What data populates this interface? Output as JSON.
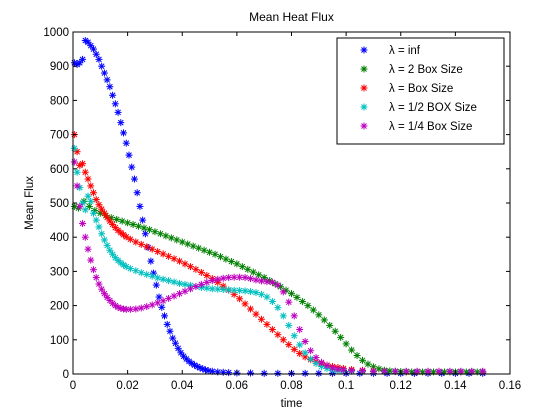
{
  "chart_data": {
    "type": "scatter",
    "title": "Mean Heat Flux",
    "xlabel": "time",
    "ylabel": "Mean Flux",
    "xlim": [
      0,
      0.16
    ],
    "ylim": [
      0,
      1000
    ],
    "xticks": [
      0,
      0.02,
      0.04,
      0.06,
      0.08,
      0.1,
      0.12,
      0.14,
      0.16
    ],
    "xtick_labels": [
      "0",
      "0.02",
      "0.04",
      "0.06",
      "0.08",
      "0.1",
      "0.12",
      "0.14",
      "0.16"
    ],
    "yticks": [
      0,
      100,
      200,
      300,
      400,
      500,
      600,
      700,
      800,
      900,
      1000
    ],
    "ytick_labels": [
      "0",
      "100",
      "200",
      "300",
      "400",
      "500",
      "600",
      "700",
      "800",
      "900",
      "1000"
    ],
    "grid": false,
    "legend_position": "top-right",
    "marker": "*",
    "series": [
      {
        "name": "λ = inf",
        "color": "#0000ff",
        "x": [
          0.0005,
          0.0015,
          0.0025,
          0.0035,
          0.0045,
          0.0055,
          0.0065,
          0.0075,
          0.0085,
          0.0095,
          0.0105,
          0.0115,
          0.0125,
          0.0135,
          0.0145,
          0.0155,
          0.0165,
          0.0175,
          0.0185,
          0.0195,
          0.0205,
          0.0215,
          0.0225,
          0.0235,
          0.0245,
          0.0255,
          0.0265,
          0.0275,
          0.0285,
          0.0295,
          0.0305,
          0.0315,
          0.0325,
          0.0335,
          0.0345,
          0.0355,
          0.0365,
          0.0375,
          0.0385,
          0.0395,
          0.0405,
          0.0415,
          0.0425,
          0.0435,
          0.0445,
          0.0455,
          0.0465,
          0.0475,
          0.0485,
          0.0495,
          0.051,
          0.053,
          0.055,
          0.057,
          0.06,
          0.065,
          0.07,
          0.075,
          0.08,
          0.085,
          0.09,
          0.095,
          0.1,
          0.105,
          0.11,
          0.115,
          0.12,
          0.125,
          0.13,
          0.135,
          0.14,
          0.145,
          0.15
        ],
        "y": [
          910,
          905,
          910,
          920,
          975,
          970,
          960,
          950,
          935,
          920,
          900,
          880,
          860,
          840,
          815,
          790,
          765,
          735,
          705,
          675,
          640,
          605,
          570,
          530,
          490,
          450,
          410,
          370,
          330,
          295,
          260,
          225,
          195,
          170,
          145,
          125,
          105,
          90,
          75,
          62,
          52,
          44,
          37,
          31,
          26,
          22,
          18,
          15,
          12,
          10,
          8,
          6,
          5,
          4,
          3,
          3,
          2,
          2,
          2,
          2,
          2,
          2,
          2,
          2,
          2,
          2,
          2,
          2,
          2,
          2,
          2,
          2,
          2
        ]
      },
      {
        "name": "λ = 2 Box Size",
        "color": "#008000",
        "x": [
          0.0005,
          0.002,
          0.004,
          0.006,
          0.008,
          0.01,
          0.012,
          0.014,
          0.016,
          0.018,
          0.02,
          0.022,
          0.024,
          0.026,
          0.028,
          0.03,
          0.032,
          0.034,
          0.036,
          0.038,
          0.04,
          0.042,
          0.044,
          0.046,
          0.048,
          0.05,
          0.052,
          0.054,
          0.056,
          0.058,
          0.06,
          0.062,
          0.064,
          0.066,
          0.068,
          0.07,
          0.072,
          0.074,
          0.076,
          0.078,
          0.08,
          0.082,
          0.084,
          0.086,
          0.088,
          0.09,
          0.092,
          0.094,
          0.096,
          0.098,
          0.1,
          0.102,
          0.104,
          0.106,
          0.108,
          0.11,
          0.112,
          0.114,
          0.116,
          0.118,
          0.12,
          0.122,
          0.124,
          0.126,
          0.128,
          0.13,
          0.132,
          0.134,
          0.136,
          0.138,
          0.14,
          0.142,
          0.144,
          0.146,
          0.148,
          0.15
        ],
        "y": [
          490,
          485,
          505,
          490,
          478,
          470,
          463,
          457,
          452,
          447,
          442,
          437,
          432,
          427,
          422,
          416,
          410,
          404,
          398,
          392,
          386,
          380,
          374,
          368,
          362,
          356,
          350,
          343,
          336,
          329,
          322,
          314,
          306,
          298,
          290,
          282,
          273,
          264,
          255,
          245,
          235,
          224,
          212,
          200,
          187,
          173,
          158,
          142,
          125,
          107,
          88,
          70,
          54,
          40,
          29,
          21,
          15,
          11,
          9,
          8,
          7,
          6,
          6,
          6,
          6,
          6,
          6,
          6,
          6,
          6,
          6,
          6,
          6,
          6,
          6,
          6
        ]
      },
      {
        "name": "λ = Box Size",
        "color": "#ff0000",
        "x": [
          0.0005,
          0.0015,
          0.0025,
          0.0035,
          0.0045,
          0.0055,
          0.0065,
          0.0075,
          0.0085,
          0.0095,
          0.0105,
          0.0115,
          0.0125,
          0.0135,
          0.0145,
          0.0155,
          0.0165,
          0.0175,
          0.0185,
          0.0195,
          0.021,
          0.023,
          0.025,
          0.027,
          0.029,
          0.031,
          0.033,
          0.035,
          0.037,
          0.039,
          0.041,
          0.043,
          0.045,
          0.047,
          0.049,
          0.051,
          0.053,
          0.055,
          0.057,
          0.059,
          0.061,
          0.063,
          0.065,
          0.067,
          0.069,
          0.071,
          0.073,
          0.075,
          0.077,
          0.079,
          0.081,
          0.083,
          0.085,
          0.087,
          0.089,
          0.091,
          0.093,
          0.095,
          0.097,
          0.099,
          0.102,
          0.106,
          0.11,
          0.114,
          0.118,
          0.122,
          0.126,
          0.13,
          0.134,
          0.138,
          0.142,
          0.146,
          0.15
        ],
        "y": [
          700,
          650,
          610,
          615,
          590,
          570,
          550,
          530,
          510,
          495,
          482,
          470,
          458,
          447,
          437,
          428,
          420,
          413,
          407,
          401,
          394,
          386,
          379,
          372,
          365,
          358,
          351,
          344,
          337,
          330,
          322,
          314,
          306,
          297,
          288,
          279,
          268,
          257,
          245,
          233,
          220,
          205,
          190,
          175,
          160,
          145,
          130,
          115,
          100,
          86,
          72,
          60,
          50,
          42,
          36,
          30,
          26,
          22,
          19,
          16,
          13,
          11,
          9,
          8,
          7,
          6,
          6,
          6,
          6,
          6,
          6,
          6,
          6
        ]
      },
      {
        "name": "λ = 1/2 BOX Size",
        "color": "#00bfbf",
        "x": [
          0.0005,
          0.0015,
          0.0025,
          0.0035,
          0.0045,
          0.0055,
          0.0065,
          0.0075,
          0.0085,
          0.0095,
          0.0105,
          0.0115,
          0.0125,
          0.0135,
          0.0145,
          0.0155,
          0.0165,
          0.0175,
          0.0185,
          0.0195,
          0.021,
          0.023,
          0.025,
          0.027,
          0.029,
          0.031,
          0.033,
          0.035,
          0.037,
          0.039,
          0.041,
          0.043,
          0.045,
          0.047,
          0.049,
          0.051,
          0.053,
          0.055,
          0.057,
          0.059,
          0.061,
          0.063,
          0.065,
          0.067,
          0.069,
          0.071,
          0.073,
          0.075,
          0.077,
          0.079,
          0.081,
          0.083,
          0.085,
          0.087,
          0.089,
          0.091,
          0.093,
          0.095,
          0.097,
          0.099,
          0.102,
          0.106,
          0.11,
          0.114,
          0.118,
          0.122,
          0.126,
          0.13,
          0.134,
          0.138,
          0.142,
          0.146,
          0.15
        ],
        "y": [
          660,
          590,
          545,
          500,
          480,
          520,
          505,
          470,
          450,
          430,
          410,
          392,
          376,
          362,
          350,
          340,
          332,
          325,
          319,
          314,
          308,
          302,
          296,
          291,
          286,
          281,
          277,
          273,
          269,
          265,
          262,
          259,
          256,
          253,
          251,
          249,
          248,
          247,
          246,
          245,
          244,
          243,
          241,
          238,
          233,
          225,
          212,
          194,
          170,
          142,
          112,
          85,
          62,
          44,
          31,
          22,
          16,
          12,
          10,
          9,
          8,
          7,
          7,
          7,
          7,
          7,
          7,
          7,
          7,
          7,
          7,
          7,
          7
        ]
      },
      {
        "name": "λ = 1/4 Box Size",
        "color": "#bf00bf",
        "x": [
          0.0005,
          0.0015,
          0.0025,
          0.0035,
          0.0045,
          0.0055,
          0.0065,
          0.0075,
          0.0085,
          0.0095,
          0.0105,
          0.0115,
          0.0125,
          0.0135,
          0.0145,
          0.0155,
          0.0165,
          0.0175,
          0.0185,
          0.0195,
          0.021,
          0.023,
          0.025,
          0.027,
          0.029,
          0.031,
          0.033,
          0.035,
          0.037,
          0.039,
          0.041,
          0.043,
          0.045,
          0.047,
          0.049,
          0.051,
          0.053,
          0.055,
          0.057,
          0.059,
          0.061,
          0.063,
          0.065,
          0.067,
          0.069,
          0.071,
          0.073,
          0.075,
          0.077,
          0.079,
          0.081,
          0.083,
          0.085,
          0.087,
          0.089,
          0.091,
          0.093,
          0.095,
          0.097,
          0.099,
          0.102,
          0.106,
          0.11,
          0.114,
          0.118,
          0.122,
          0.126,
          0.13,
          0.134,
          0.138,
          0.142,
          0.146,
          0.15
        ],
        "y": [
          620,
          550,
          490,
          440,
          400,
          365,
          333,
          305,
          282,
          263,
          248,
          235,
          224,
          215,
          207,
          200,
          195,
          192,
          190,
          189,
          189,
          190,
          193,
          197,
          202,
          208,
          214,
          221,
          228,
          235,
          242,
          249,
          256,
          262,
          268,
          273,
          277,
          280,
          282,
          283,
          283,
          282,
          279,
          275,
          272,
          270,
          268,
          260,
          240,
          210,
          170,
          130,
          95,
          68,
          48,
          34,
          25,
          18,
          14,
          12,
          10,
          9,
          8,
          8,
          8,
          8,
          8,
          8,
          8,
          8,
          8,
          8,
          8
        ]
      }
    ]
  }
}
